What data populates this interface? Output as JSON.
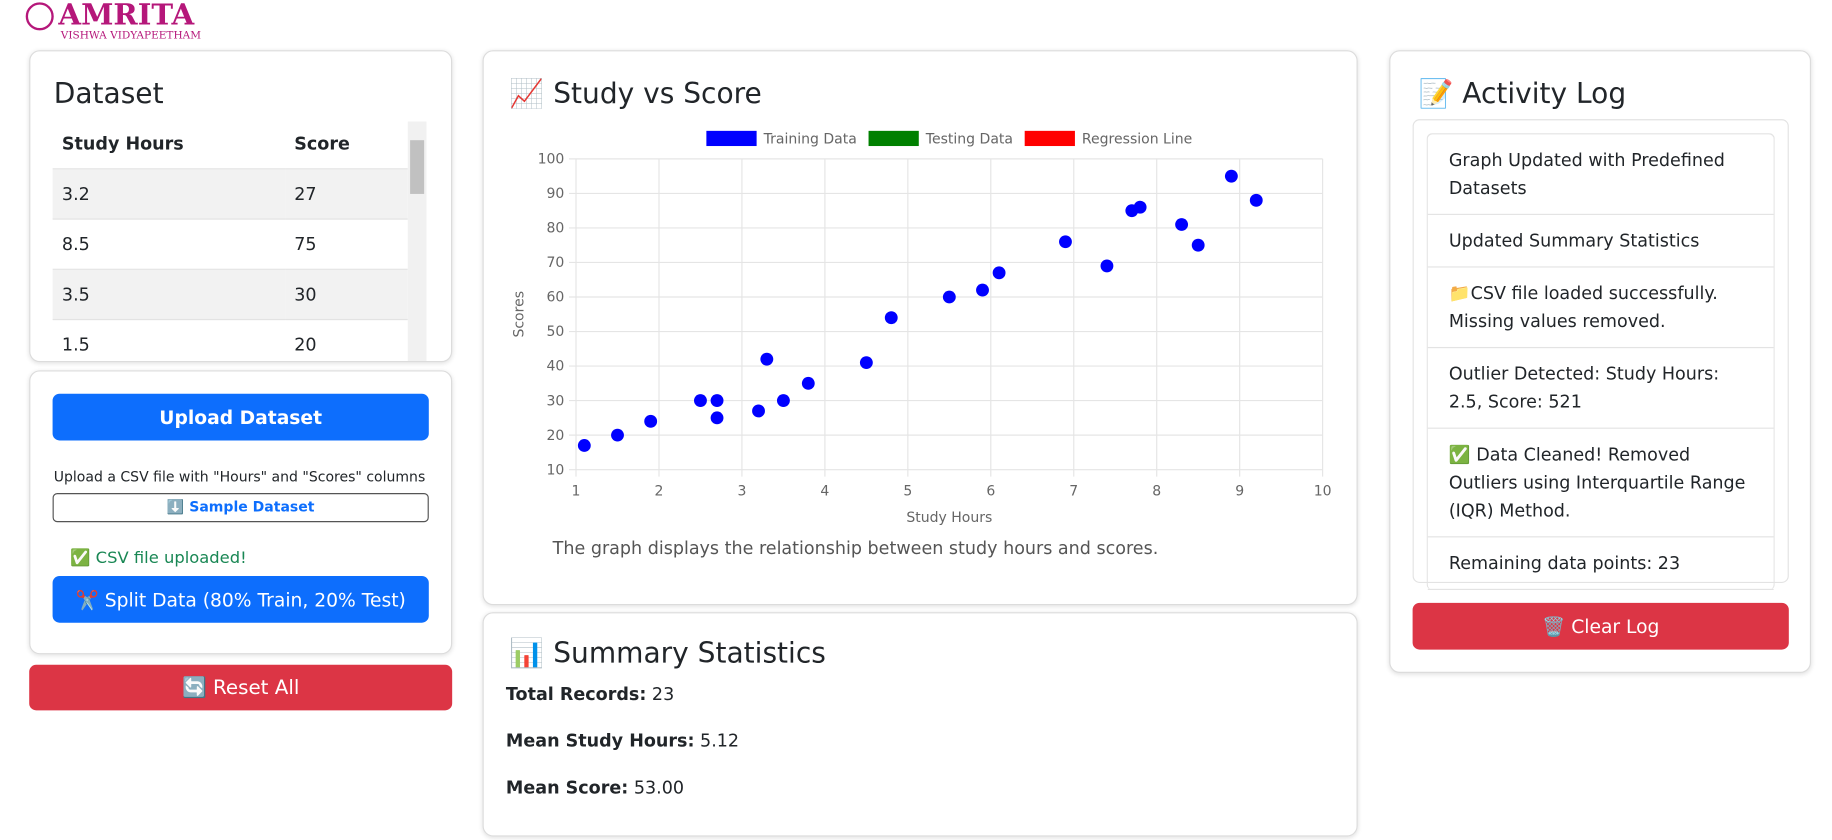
{
  "header": {
    "logo_title": "AMRITA",
    "logo_subtitle": "VISHWA VIDYAPEETHAM"
  },
  "dataset": {
    "title": "Dataset",
    "columns": [
      "Study Hours",
      "Score"
    ],
    "rows": [
      [
        "3.2",
        "27"
      ],
      [
        "8.5",
        "75"
      ],
      [
        "3.5",
        "30"
      ],
      [
        "1.5",
        "20"
      ]
    ]
  },
  "upload": {
    "button": "Upload Dataset",
    "hint": "Upload a CSV file with \"Hours\" and \"Scores\" columns",
    "sample_button": "⬇️ Sample Dataset",
    "status": "✅ CSV file uploaded!",
    "split_button": "✂️ Split Data (80% Train, 20% Test)"
  },
  "reset_button": "🔄 Reset All",
  "chart_panel": {
    "title": "📈 Study vs Score",
    "caption": "The graph displays the relationship between study hours and scores."
  },
  "chart_data": {
    "type": "scatter",
    "x_label": "Study Hours",
    "y_label": "Scores",
    "xlim": [
      1,
      10
    ],
    "xticks": [
      1,
      2,
      3,
      4,
      5,
      6,
      7,
      8,
      9,
      10
    ],
    "ylim": [
      10,
      100
    ],
    "yticks": [
      10,
      20,
      30,
      40,
      50,
      60,
      70,
      80,
      90,
      100
    ],
    "grid": true,
    "legend": "top",
    "series": [
      {
        "name": "Training Data",
        "color": "#0000ff",
        "x": [
          1.1,
          1.5,
          1.9,
          2.5,
          2.7,
          2.7,
          3.2,
          3.3,
          3.5,
          3.8,
          4.5,
          4.8,
          5.5,
          5.9,
          6.1,
          6.9,
          7.4,
          7.7,
          7.8,
          8.3,
          8.5,
          8.9,
          9.2
        ],
        "values": [
          17,
          20,
          24,
          30,
          30,
          25,
          27,
          42,
          30,
          35,
          41,
          54,
          60,
          62,
          67,
          76,
          69,
          85,
          86,
          81,
          75,
          95,
          88
        ]
      },
      {
        "name": "Testing Data",
        "color": "#008000",
        "x": [],
        "values": []
      },
      {
        "name": "Regression Line",
        "color": "#ff0000",
        "x": [],
        "values": []
      }
    ]
  },
  "summary": {
    "title": "📊 Summary Statistics",
    "items": [
      {
        "label": "Total Records:",
        "value": "23"
      },
      {
        "label": "Mean Study Hours:",
        "value": "5.12"
      },
      {
        "label": "Mean Score:",
        "value": "53.00"
      }
    ]
  },
  "log": {
    "title": "📝 Activity Log",
    "entries": [
      "Graph Updated with Predefined Datasets",
      "Updated Summary Statistics",
      "📁CSV file loaded successfully. Missing values removed.",
      "Outlier Detected: Study Hours: 2.5, Score: 521",
      "✅ Data Cleaned! Removed Outliers using Interquartile Range (IQR) Method.",
      "Remaining data points: 23"
    ],
    "clear_button": "🗑️ Clear Log"
  }
}
